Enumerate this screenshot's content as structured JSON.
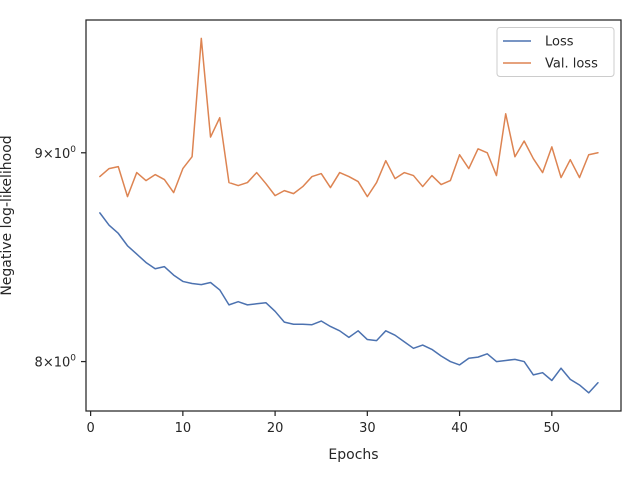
{
  "chart_data": {
    "type": "line",
    "title": "",
    "xlabel": "Epochs",
    "ylabel": "Negative log-likelihood",
    "yscale": "log",
    "xlim": [
      -0.5,
      57.5
    ],
    "ylim": [
      7.78,
      9.7
    ],
    "grid": false,
    "legend_position": "top-right",
    "x_ticks": [
      0,
      10,
      20,
      30,
      40,
      50
    ],
    "x_tick_labels": [
      "0",
      "10",
      "20",
      "30",
      "40",
      "50"
    ],
    "y_ticks": [
      8,
      9
    ],
    "y_tick_base": [
      "8",
      "9"
    ],
    "y_tick_times": "×10",
    "y_tick_exponent": "0",
    "x": [
      1,
      2,
      3,
      4,
      5,
      6,
      7,
      8,
      9,
      10,
      11,
      12,
      13,
      14,
      15,
      16,
      17,
      18,
      19,
      20,
      21,
      22,
      23,
      24,
      25,
      26,
      27,
      28,
      29,
      30,
      31,
      32,
      33,
      34,
      35,
      36,
      37,
      38,
      39,
      40,
      41,
      42,
      43,
      44,
      45,
      46,
      47,
      48,
      49,
      50,
      51,
      52,
      53,
      54,
      55
    ],
    "series": [
      {
        "name": "Loss",
        "color": "#4c72b0",
        "values": [
          8.7,
          8.64,
          8.6,
          8.54,
          8.5,
          8.46,
          8.43,
          8.44,
          8.4,
          8.37,
          8.36,
          8.355,
          8.365,
          8.33,
          8.26,
          8.275,
          8.26,
          8.265,
          8.27,
          8.23,
          8.18,
          8.17,
          8.17,
          8.168,
          8.185,
          8.16,
          8.14,
          8.11,
          8.14,
          8.1,
          8.095,
          8.14,
          8.12,
          8.09,
          8.06,
          8.075,
          8.055,
          8.025,
          8.0,
          7.985,
          8.015,
          8.02,
          8.035,
          8.0,
          8.005,
          8.01,
          8.0,
          7.94,
          7.95,
          7.915,
          7.97,
          7.92,
          7.895,
          7.86,
          7.905
        ]
      },
      {
        "name": "Val. loss",
        "color": "#dd8452",
        "values": [
          8.88,
          8.92,
          8.93,
          8.78,
          8.9,
          8.86,
          8.89,
          8.865,
          8.8,
          8.92,
          8.98,
          9.6,
          9.08,
          9.18,
          8.85,
          8.835,
          8.85,
          8.9,
          8.845,
          8.785,
          8.81,
          8.795,
          8.83,
          8.88,
          8.895,
          8.825,
          8.9,
          8.88,
          8.855,
          8.78,
          8.85,
          8.96,
          8.87,
          8.9,
          8.885,
          8.83,
          8.885,
          8.84,
          8.86,
          8.99,
          8.92,
          9.02,
          9.0,
          8.885,
          9.2,
          8.98,
          9.06,
          8.97,
          8.9,
          9.03,
          8.875,
          8.965,
          8.875,
          8.99,
          9.0
        ]
      }
    ]
  }
}
